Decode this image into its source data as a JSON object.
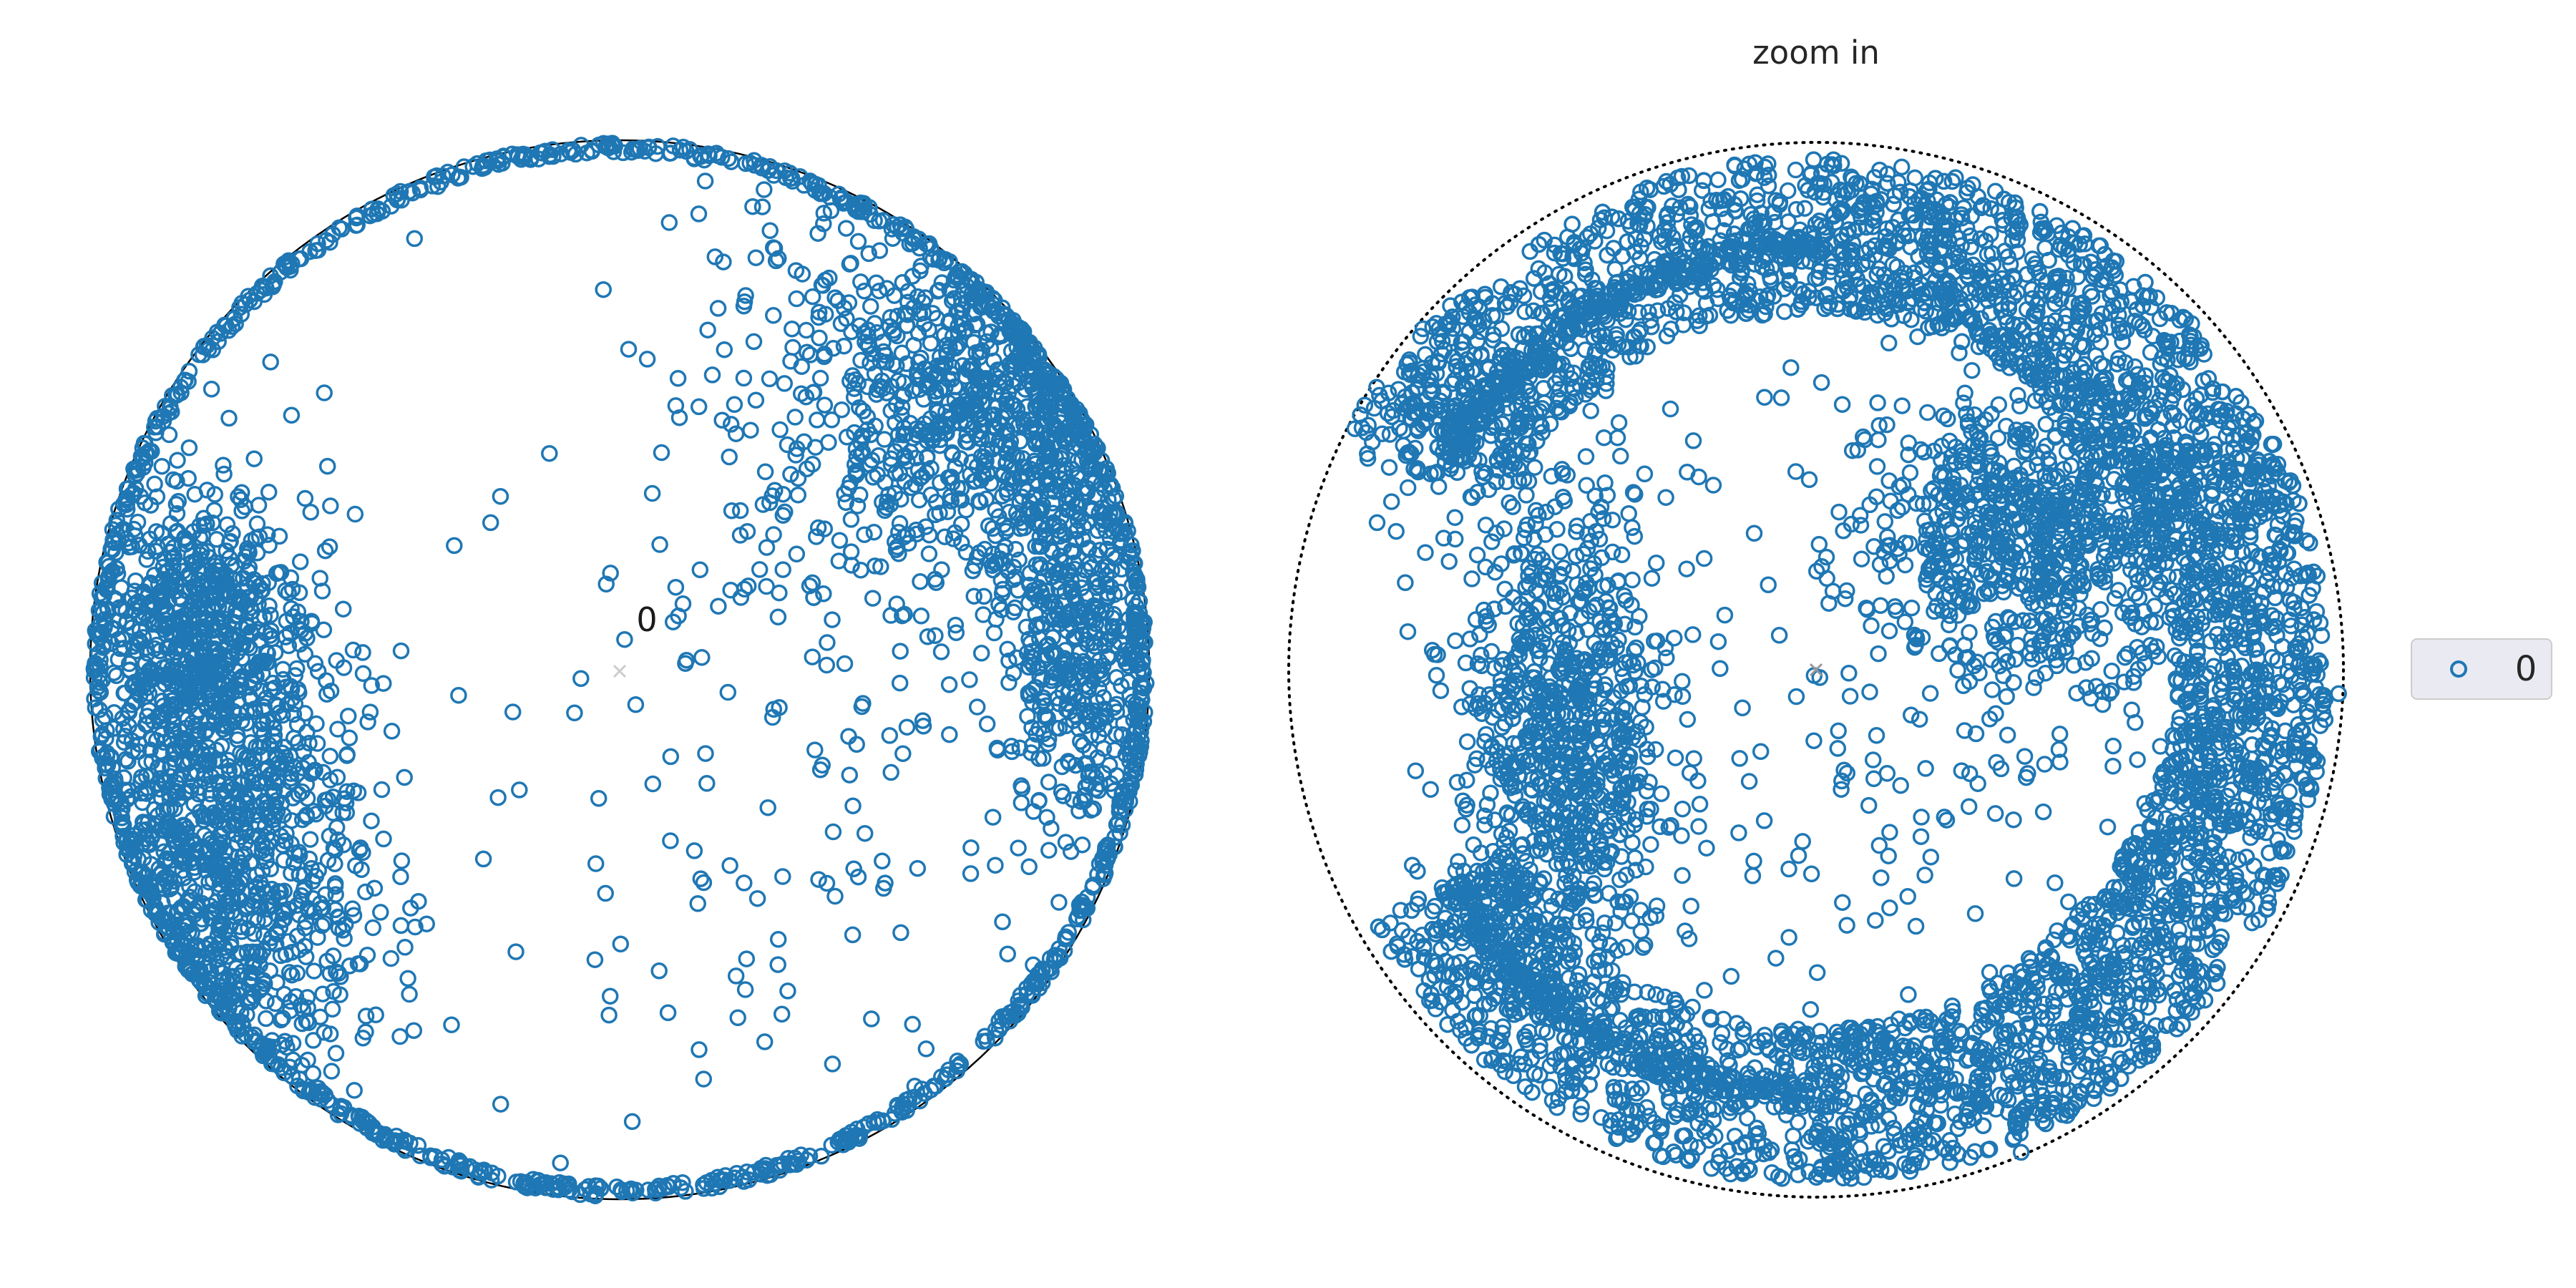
{
  "colors": {
    "marker": "#1f77b4",
    "background": "#ffffff",
    "legend_bg": "#eaeaf2",
    "legend_border": "#cccccc",
    "boundary": "#000000"
  },
  "chart_data": [
    {
      "type": "scatter",
      "panel": "left",
      "title": "",
      "center_label": "0",
      "marker": "open-circle",
      "boundary": "solid-circle",
      "series": [
        {
          "name": "0",
          "clusters": [
            {
              "kind": "rim",
              "r_min": 0.975,
              "r_max": 1.0,
              "count": 1300,
              "theta": [
                0,
                360
              ]
            },
            {
              "kind": "blob",
              "x": -0.78,
              "y": -0.35,
              "sx": 0.14,
              "sy": 0.32,
              "count": 1600
            },
            {
              "kind": "blob",
              "x": -0.8,
              "y": 0.1,
              "sx": 0.08,
              "sy": 0.12,
              "count": 400
            },
            {
              "kind": "blob",
              "x": 0.75,
              "y": 0.48,
              "sx": 0.16,
              "sy": 0.16,
              "count": 900
            },
            {
              "kind": "blob",
              "x": 0.88,
              "y": 0.05,
              "sx": 0.08,
              "sy": 0.18,
              "count": 500
            },
            {
              "kind": "blob",
              "x": 0.45,
              "y": 0.55,
              "sx": 0.2,
              "sy": 0.22,
              "count": 260
            },
            {
              "kind": "scatter",
              "x": 0.35,
              "y": -0.15,
              "sx": 0.35,
              "sy": 0.45,
              "count": 170
            }
          ]
        }
      ]
    },
    {
      "type": "scatter",
      "panel": "right",
      "title": "zoom in",
      "center_label": "",
      "marker": "open-circle",
      "boundary": "dotted-circle",
      "series": [
        {
          "name": "0",
          "clusters": [
            {
              "kind": "ring",
              "r_min": 0.68,
              "r_max": 0.97,
              "count": 5200,
              "theta": [
                -150,
                150
              ],
              "weight_right": 1.4
            },
            {
              "kind": "blob",
              "x": -0.48,
              "y": -0.15,
              "sx": 0.1,
              "sy": 0.25,
              "count": 900
            },
            {
              "kind": "blob",
              "x": 0.43,
              "y": 0.26,
              "sx": 0.16,
              "sy": 0.13,
              "count": 800
            },
            {
              "kind": "scatter",
              "x": 0.25,
              "y": 0.0,
              "sx": 0.35,
              "sy": 0.35,
              "count": 250
            },
            {
              "kind": "blob",
              "x": -0.7,
              "y": 0.5,
              "sx": 0.1,
              "sy": 0.12,
              "count": 200
            }
          ]
        }
      ]
    }
  ],
  "legend": {
    "entries": [
      {
        "label": "0",
        "marker": "open-circle"
      }
    ],
    "placement": "center-right"
  }
}
